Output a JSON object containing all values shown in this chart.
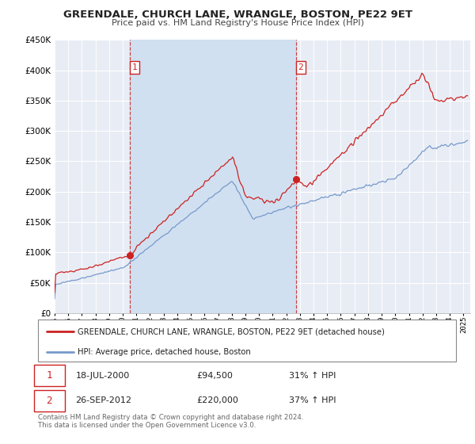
{
  "title": "GREENDALE, CHURCH LANE, WRANGLE, BOSTON, PE22 9ET",
  "subtitle": "Price paid vs. HM Land Registry's House Price Index (HPI)",
  "ylim": [
    0,
    450000
  ],
  "xlim_start": 1995.0,
  "xlim_end": 2025.5,
  "plot_bg_color": "#e8edf5",
  "red_line_color": "#cc2222",
  "blue_line_color": "#7799cc",
  "vline_color": "#cc2222",
  "span_color": "#d0e0f0",
  "grid_color": "#ffffff",
  "marker1_date": 2000.54,
  "marker1_value": 94500,
  "marker2_date": 2012.74,
  "marker2_value": 220000,
  "marker1_display": "18-JUL-2000",
  "marker1_price": "£94,500",
  "marker1_hpi": "31% ↑ HPI",
  "marker2_display": "26-SEP-2012",
  "marker2_price": "£220,000",
  "marker2_hpi": "37% ↑ HPI",
  "legend_line1": "GREENDALE, CHURCH LANE, WRANGLE, BOSTON, PE22 9ET (detached house)",
  "legend_line2": "HPI: Average price, detached house, Boston",
  "footnote": "Contains HM Land Registry data © Crown copyright and database right 2024.\nThis data is licensed under the Open Government Licence v3.0.",
  "ytick_values": [
    0,
    50000,
    100000,
    150000,
    200000,
    250000,
    300000,
    350000,
    400000,
    450000
  ]
}
